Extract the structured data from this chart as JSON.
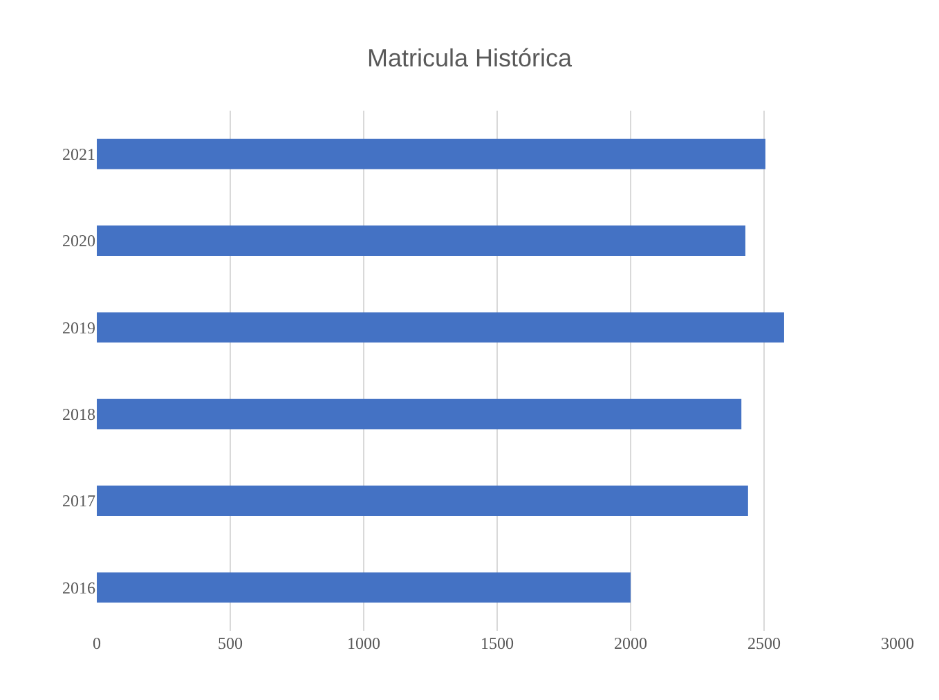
{
  "chart_data": {
    "type": "bar",
    "orientation": "horizontal",
    "title": "Matricula Histórica",
    "categories": [
      "2021",
      "2020",
      "2019",
      "2018",
      "2017",
      "2016"
    ],
    "values": [
      2505,
      2430,
      2575,
      2415,
      2440,
      2000
    ],
    "color": "#4472c4",
    "xlim": [
      0,
      3000
    ],
    "xticks": [
      0,
      500,
      1000,
      1500,
      2000,
      2500,
      3000
    ],
    "grid": "x"
  }
}
